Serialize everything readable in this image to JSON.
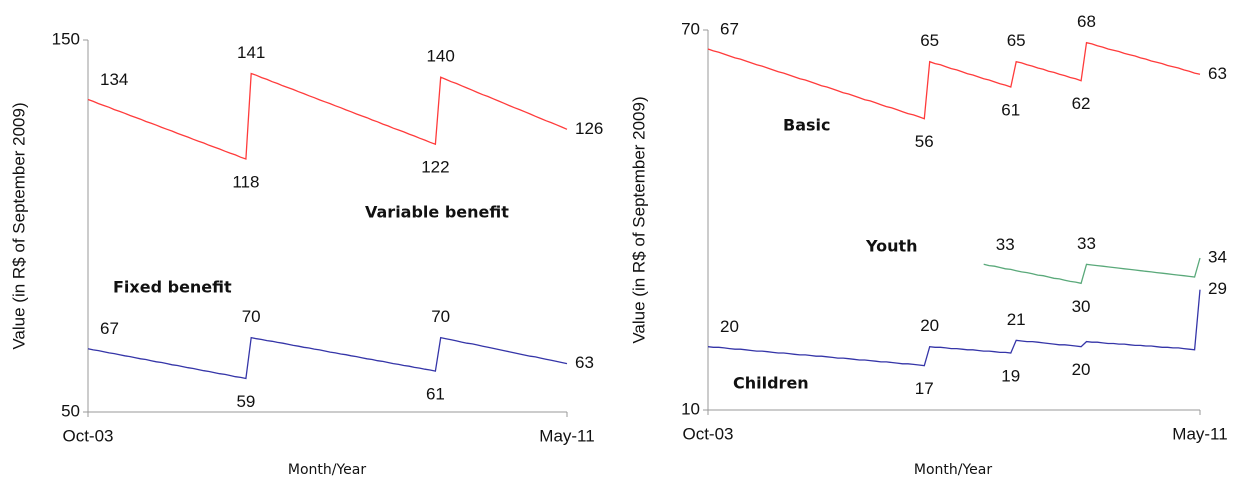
{
  "chart_data": [
    {
      "type": "line",
      "x_label": "Month/Year",
      "y_label": "Value  (in R$ of September 2009)",
      "categories": [
        "Oct-03",
        null,
        null,
        null,
        null,
        null,
        null,
        null,
        null,
        null,
        null,
        null,
        null,
        null,
        null,
        null,
        null,
        null,
        null,
        null,
        null,
        null,
        null,
        null,
        null,
        null,
        null,
        null,
        null,
        null,
        null,
        null,
        null,
        null,
        null,
        null,
        null,
        null,
        null,
        null,
        null,
        null,
        null,
        null,
        null,
        null,
        null,
        null,
        null,
        null,
        null,
        null,
        null,
        null,
        null,
        null,
        null,
        null,
        null,
        null,
        null,
        null,
        null,
        null,
        null,
        null,
        null,
        null,
        null,
        null,
        null,
        null,
        null,
        null,
        null,
        null,
        null,
        null,
        null,
        null,
        null,
        null,
        null,
        null,
        null,
        null,
        null,
        null,
        null,
        null,
        null,
        "May-11"
      ],
      "ylim": [
        50,
        150
      ],
      "yticks": [
        50,
        150
      ],
      "series": [
        {
          "name": "Variable benefit",
          "color": "#ff3b3b",
          "values": [
            134,
            133.5,
            132.9,
            132.4,
            131.9,
            131.3,
            130.8,
            130.3,
            129.7,
            129.2,
            128.7,
            128.1,
            127.6,
            127.1,
            126.5,
            126,
            125.5,
            124.9,
            124.4,
            123.9,
            123.3,
            122.8,
            122.3,
            121.7,
            121.2,
            120.7,
            120.1,
            119.6,
            119.1,
            118.5,
            118,
            141,
            140.5,
            139.9,
            139.4,
            138.8,
            138.3,
            137.7,
            137.2,
            136.7,
            136.1,
            135.6,
            135,
            134.5,
            133.9,
            133.4,
            132.9,
            132.3,
            131.8,
            131.2,
            130.7,
            130.1,
            129.6,
            129.1,
            128.5,
            128,
            127.4,
            126.9,
            126.3,
            125.8,
            125.3,
            124.7,
            124.2,
            123.6,
            123.1,
            122.5,
            122,
            140,
            139.4,
            138.8,
            138.3,
            137.7,
            137.1,
            136.5,
            135.9,
            135.3,
            134.8,
            134.2,
            133.6,
            133,
            132.4,
            131.8,
            131.3,
            130.7,
            130.1,
            129.5,
            128.9,
            128.3,
            127.8,
            127.2,
            126.6,
            126
          ]
        },
        {
          "name": "Fixed benefit",
          "color": "#3535a8",
          "values": [
            67,
            66.7,
            66.5,
            66.2,
            65.9,
            65.7,
            65.4,
            65.1,
            64.9,
            64.6,
            64.3,
            64.1,
            63.8,
            63.5,
            63.3,
            63,
            62.7,
            62.5,
            62.2,
            61.9,
            61.7,
            61.4,
            61.1,
            60.9,
            60.6,
            60.3,
            60.1,
            59.8,
            59.5,
            59.3,
            59,
            70,
            69.7,
            69.5,
            69.2,
            69,
            68.7,
            68.5,
            68.2,
            67.9,
            67.7,
            67.4,
            67.2,
            66.9,
            66.7,
            66.4,
            66.1,
            65.9,
            65.6,
            65.4,
            65.1,
            64.9,
            64.6,
            64.3,
            64.1,
            63.8,
            63.6,
            63.3,
            63,
            62.8,
            62.5,
            62.3,
            62,
            61.8,
            61.5,
            61.3,
            61,
            70,
            69.7,
            69.4,
            69.1,
            68.8,
            68.5,
            68.3,
            68,
            67.7,
            67.4,
            67.1,
            66.8,
            66.5,
            66.2,
            65.9,
            65.6,
            65.3,
            65,
            64.8,
            64.5,
            64.2,
            63.9,
            63.6,
            63.3,
            63
          ]
        }
      ]
    },
    {
      "type": "line",
      "x_label": "Month/Year",
      "y_label": "Value  (in R$ of September 2009)",
      "categories": [
        "Oct-03",
        null,
        null,
        null,
        null,
        null,
        null,
        null,
        null,
        null,
        null,
        null,
        null,
        null,
        null,
        null,
        null,
        null,
        null,
        null,
        null,
        null,
        null,
        null,
        null,
        null,
        null,
        null,
        null,
        null,
        null,
        null,
        null,
        null,
        null,
        null,
        null,
        null,
        null,
        null,
        null,
        null,
        null,
        null,
        null,
        null,
        null,
        null,
        null,
        null,
        null,
        null,
        null,
        null,
        null,
        null,
        null,
        null,
        null,
        null,
        null,
        null,
        null,
        null,
        null,
        null,
        null,
        null,
        null,
        null,
        null,
        null,
        null,
        null,
        null,
        null,
        null,
        null,
        null,
        null,
        null,
        null,
        null,
        null,
        null,
        null,
        null,
        null,
        null,
        null,
        null,
        "May-11"
      ],
      "ylim": [
        10,
        70
      ],
      "yticks": [
        10,
        70
      ],
      "series": [
        {
          "name": "Basic",
          "color": "#ff3b3b",
          "values": [
            67,
            66.7,
            66.5,
            66.2,
            65.9,
            65.6,
            65.4,
            65.1,
            64.8,
            64.5,
            64.3,
            64,
            63.7,
            63.4,
            63.2,
            62.9,
            62.6,
            62.3,
            62.1,
            61.8,
            61.5,
            61.2,
            61,
            60.7,
            60.4,
            60.1,
            59.9,
            59.6,
            59.3,
            59,
            58.8,
            58.5,
            58.2,
            57.9,
            57.7,
            57.4,
            57.1,
            56.8,
            56.6,
            56.3,
            56,
            65,
            64.7,
            64.5,
            64.2,
            63.9,
            63.7,
            63.4,
            63.1,
            62.9,
            62.6,
            62.3,
            62.1,
            61.8,
            61.5,
            61.3,
            61,
            65,
            64.8,
            64.5,
            64.3,
            64,
            63.8,
            63.5,
            63.3,
            63,
            62.8,
            62.5,
            62.3,
            62,
            68,
            67.8,
            67.5,
            67.3,
            67,
            66.8,
            66.6,
            66.3,
            66.1,
            65.9,
            65.6,
            65.4,
            65.1,
            64.9,
            64.7,
            64.4,
            64.2,
            64,
            63.7,
            63.5,
            63.2,
            63
          ]
        },
        {
          "name": "Youth",
          "color": "#5aa97a",
          "values": [
            null,
            null,
            null,
            null,
            null,
            null,
            null,
            null,
            null,
            null,
            null,
            null,
            null,
            null,
            null,
            null,
            null,
            null,
            null,
            null,
            null,
            null,
            null,
            null,
            null,
            null,
            null,
            null,
            null,
            null,
            null,
            null,
            null,
            null,
            null,
            null,
            null,
            null,
            null,
            null,
            null,
            null,
            null,
            null,
            null,
            null,
            null,
            null,
            null,
            null,
            null,
            33,
            32.8,
            32.7,
            32.5,
            32.3,
            32.2,
            32,
            31.8,
            31.7,
            31.5,
            31.3,
            31.2,
            31,
            30.8,
            30.7,
            30.5,
            30.3,
            30.2,
            30,
            33,
            32.9,
            32.8,
            32.7,
            32.6,
            32.5,
            32.4,
            32.3,
            32.2,
            32.1,
            32,
            31.9,
            31.8,
            31.7,
            31.6,
            31.5,
            31.4,
            31.3,
            31.2,
            31.1,
            31,
            34
          ]
        },
        {
          "name": "Children",
          "color": "#3535a8",
          "values": [
            20,
            19.9,
            19.9,
            19.8,
            19.7,
            19.6,
            19.6,
            19.5,
            19.4,
            19.3,
            19.3,
            19.2,
            19.1,
            19,
            19,
            18.9,
            18.8,
            18.7,
            18.7,
            18.6,
            18.5,
            18.5,
            18.4,
            18.3,
            18.2,
            18.2,
            18.1,
            18,
            17.9,
            17.9,
            17.8,
            17.7,
            17.6,
            17.6,
            17.5,
            17.4,
            17.3,
            17.3,
            17.2,
            17.1,
            17,
            20,
            19.9,
            19.9,
            19.8,
            19.7,
            19.7,
            19.6,
            19.5,
            19.5,
            19.4,
            19.3,
            19.3,
            19.2,
            19.1,
            19.1,
            19,
            21,
            20.9,
            20.8,
            20.8,
            20.7,
            20.6,
            20.5,
            20.4,
            20.3,
            20.3,
            20.2,
            20.1,
            20,
            20.8,
            20.7,
            20.7,
            20.6,
            20.5,
            20.5,
            20.4,
            20.4,
            20.3,
            20.2,
            20.2,
            20.1,
            20.1,
            20,
            19.9,
            19.9,
            19.8,
            19.8,
            19.7,
            19.6,
            19.5,
            29
          ]
        }
      ]
    }
  ]
}
